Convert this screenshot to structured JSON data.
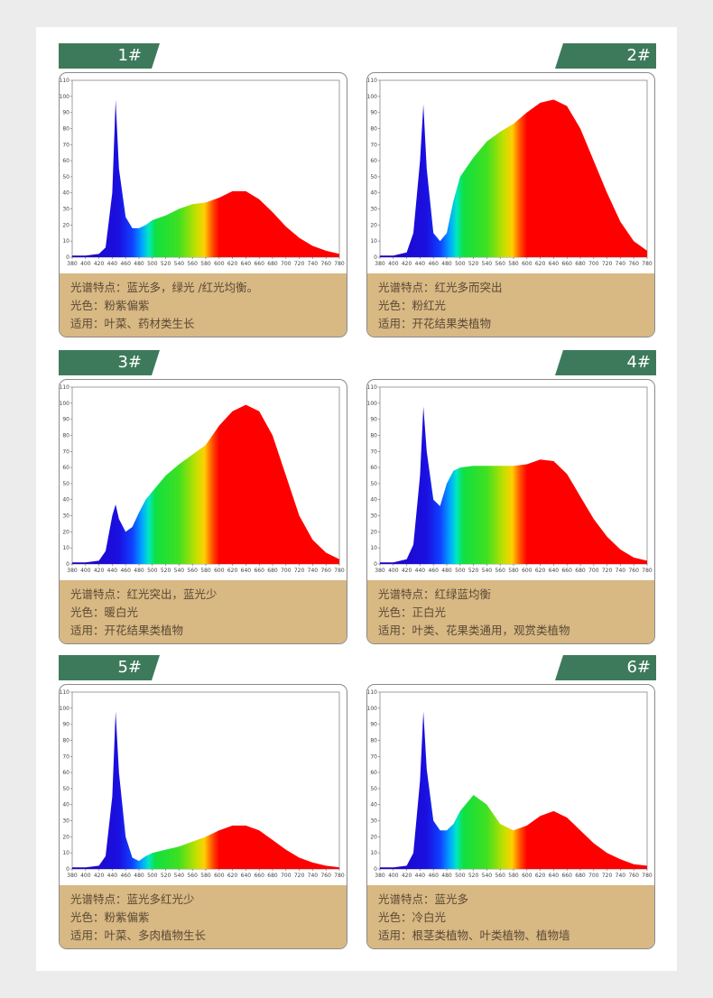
{
  "colors": {
    "tag_bg": "#3d7a5c",
    "caption_bg": "#d8b883",
    "caption_text": "#5b4a36"
  },
  "panels": [
    {
      "label": "1#",
      "side": "left",
      "caption": {
        "feature": "光谱特点：蓝光多，绿光 /红光均衡。",
        "color": "光色：粉紫偏紫",
        "usage": "适用：叶菜、药材类生长"
      }
    },
    {
      "label": "2#",
      "side": "right",
      "caption": {
        "feature": "光谱特点：红光多而突出",
        "color": "光色：粉红光",
        "usage": "适用：开花结果类植物"
      }
    },
    {
      "label": "3#",
      "side": "left",
      "caption": {
        "feature": "光谱特点：红光突出，蓝光少",
        "color": "光色：暖白光",
        "usage": "适用：开花结果类植物"
      }
    },
    {
      "label": "4#",
      "side": "right",
      "caption": {
        "feature": "光谱特点：红绿蓝均衡",
        "color": "光色：正白光",
        "usage": "适用：叶类、花果类通用，观赏类植物"
      }
    },
    {
      "label": "5#",
      "side": "left",
      "caption": {
        "feature": "光谱特点：蓝光多红光少",
        "color": "光色：粉紫偏紫",
        "usage": "适用：叶菜、多肉植物生长"
      }
    },
    {
      "label": "6#",
      "side": "right",
      "caption": {
        "feature": "光谱特点：蓝光多",
        "color": "光色：冷白光",
        "usage": "适用：根茎类植物、叶类植物、植物墙"
      }
    }
  ],
  "chart_data": [
    {
      "type": "area",
      "xlim": [
        380,
        780
      ],
      "ylim": [
        0,
        110
      ],
      "x_ticks": [
        "380",
        "400",
        "420",
        "440",
        "460",
        "480",
        "500",
        "520",
        "540",
        "560",
        "580",
        "600",
        "620",
        "640",
        "660",
        "680",
        "700",
        "720",
        "740",
        "760",
        "780"
      ],
      "y_ticks": [
        "0",
        "10",
        "20",
        "30",
        "40",
        "50",
        "60",
        "70",
        "80",
        "90",
        "100",
        "110"
      ],
      "x": [
        380,
        400,
        420,
        430,
        440,
        445,
        450,
        460,
        470,
        480,
        490,
        500,
        520,
        540,
        560,
        580,
        600,
        620,
        640,
        660,
        680,
        700,
        720,
        740,
        760,
        780
      ],
      "values": [
        1,
        1,
        2,
        6,
        40,
        98,
        55,
        25,
        18,
        18,
        20,
        23,
        26,
        30,
        33,
        34,
        37,
        41,
        41,
        36,
        28,
        19,
        12,
        7,
        4,
        2
      ]
    },
    {
      "type": "area",
      "xlim": [
        380,
        780
      ],
      "ylim": [
        0,
        110
      ],
      "x_ticks": [
        "380",
        "400",
        "420",
        "440",
        "460",
        "480",
        "500",
        "520",
        "540",
        "560",
        "580",
        "600",
        "620",
        "640",
        "660",
        "680",
        "700",
        "720",
        "740",
        "760",
        "780"
      ],
      "y_ticks": [
        "0",
        "10",
        "20",
        "30",
        "40",
        "50",
        "60",
        "70",
        "80",
        "90",
        "100",
        "110"
      ],
      "x": [
        380,
        400,
        420,
        430,
        440,
        445,
        450,
        460,
        470,
        480,
        490,
        500,
        520,
        540,
        560,
        580,
        600,
        620,
        640,
        660,
        680,
        700,
        720,
        740,
        760,
        780
      ],
      "values": [
        1,
        1,
        3,
        15,
        60,
        95,
        55,
        15,
        10,
        15,
        35,
        50,
        62,
        72,
        78,
        83,
        90,
        96,
        98,
        94,
        80,
        60,
        40,
        22,
        10,
        4
      ]
    },
    {
      "type": "area",
      "xlim": [
        380,
        780
      ],
      "ylim": [
        0,
        110
      ],
      "x_ticks": [
        "380",
        "400",
        "420",
        "440",
        "460",
        "480",
        "500",
        "520",
        "540",
        "560",
        "580",
        "600",
        "620",
        "640",
        "660",
        "680",
        "700",
        "720",
        "740",
        "760",
        "780"
      ],
      "y_ticks": [
        "0",
        "10",
        "20",
        "30",
        "40",
        "50",
        "60",
        "70",
        "80",
        "90",
        "100",
        "110"
      ],
      "x": [
        380,
        400,
        420,
        430,
        440,
        445,
        450,
        460,
        470,
        480,
        490,
        500,
        520,
        540,
        560,
        580,
        600,
        620,
        640,
        660,
        680,
        700,
        720,
        740,
        760,
        780
      ],
      "values": [
        1,
        1,
        2,
        8,
        30,
        37,
        28,
        20,
        23,
        32,
        40,
        45,
        55,
        62,
        68,
        74,
        86,
        95,
        99,
        95,
        80,
        55,
        30,
        15,
        7,
        3
      ]
    },
    {
      "type": "area",
      "xlim": [
        380,
        780
      ],
      "ylim": [
        0,
        110
      ],
      "x_ticks": [
        "380",
        "400",
        "420",
        "440",
        "460",
        "480",
        "500",
        "520",
        "540",
        "560",
        "580",
        "600",
        "620",
        "640",
        "660",
        "680",
        "700",
        "720",
        "740",
        "760",
        "780"
      ],
      "y_ticks": [
        "0",
        "10",
        "20",
        "30",
        "40",
        "50",
        "60",
        "70",
        "80",
        "90",
        "100",
        "110"
      ],
      "x": [
        380,
        400,
        420,
        430,
        440,
        445,
        450,
        460,
        470,
        480,
        490,
        500,
        520,
        540,
        560,
        580,
        600,
        620,
        640,
        660,
        680,
        700,
        720,
        740,
        760,
        780
      ],
      "values": [
        1,
        1,
        3,
        12,
        55,
        98,
        70,
        40,
        36,
        50,
        58,
        60,
        61,
        61,
        61,
        61,
        62,
        65,
        64,
        56,
        42,
        28,
        17,
        9,
        4,
        2
      ]
    },
    {
      "type": "area",
      "xlim": [
        380,
        780
      ],
      "ylim": [
        0,
        110
      ],
      "x_ticks": [
        "380",
        "400",
        "420",
        "440",
        "460",
        "480",
        "500",
        "520",
        "540",
        "560",
        "580",
        "600",
        "620",
        "640",
        "660",
        "680",
        "700",
        "720",
        "740",
        "760",
        "780"
      ],
      "y_ticks": [
        "0",
        "10",
        "20",
        "30",
        "40",
        "50",
        "60",
        "70",
        "80",
        "90",
        "100",
        "110"
      ],
      "x": [
        380,
        400,
        420,
        430,
        440,
        445,
        450,
        460,
        470,
        480,
        490,
        500,
        520,
        540,
        560,
        580,
        600,
        620,
        640,
        660,
        680,
        700,
        720,
        740,
        760,
        780
      ],
      "values": [
        1,
        1,
        2,
        8,
        45,
        98,
        60,
        20,
        7,
        5,
        8,
        10,
        12,
        14,
        17,
        20,
        24,
        27,
        27,
        24,
        18,
        12,
        7,
        4,
        2,
        1
      ]
    },
    {
      "type": "area",
      "xlim": [
        380,
        780
      ],
      "ylim": [
        0,
        110
      ],
      "x_ticks": [
        "380",
        "400",
        "420",
        "440",
        "460",
        "480",
        "500",
        "520",
        "540",
        "560",
        "580",
        "600",
        "620",
        "640",
        "660",
        "680",
        "700",
        "720",
        "740",
        "760",
        "780"
      ],
      "y_ticks": [
        "0",
        "10",
        "20",
        "30",
        "40",
        "50",
        "60",
        "70",
        "80",
        "90",
        "100",
        "110"
      ],
      "x": [
        380,
        400,
        420,
        430,
        440,
        445,
        450,
        460,
        470,
        480,
        490,
        500,
        520,
        540,
        560,
        580,
        600,
        620,
        640,
        660,
        680,
        700,
        720,
        740,
        760,
        780
      ],
      "values": [
        1,
        1,
        2,
        10,
        55,
        98,
        62,
        30,
        24,
        24,
        28,
        36,
        46,
        40,
        28,
        24,
        27,
        33,
        36,
        32,
        24,
        16,
        10,
        6,
        3,
        2
      ]
    }
  ]
}
